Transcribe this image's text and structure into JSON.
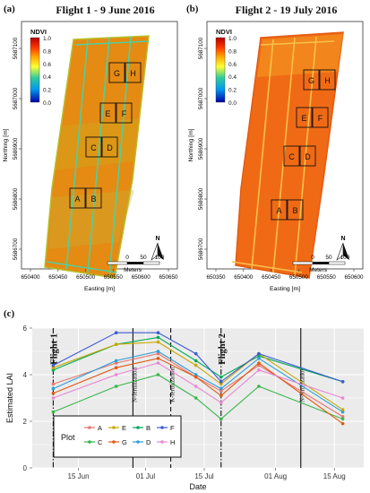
{
  "panels": {
    "a": {
      "letter": "(a)",
      "title": "Flight 1 - 9 June 2016"
    },
    "b": {
      "letter": "(b)",
      "title": "Flight 2 - 19 July 2016"
    },
    "c": {
      "letter": "(c)"
    }
  },
  "maps": {
    "ndvi_title": "NDVI",
    "ndvi_ticks": [
      "1.0",
      "0.8",
      "0.6",
      "0.4",
      "0.2",
      "0.0"
    ],
    "plots": [
      [
        "G",
        "H"
      ],
      [
        "E",
        "F"
      ],
      [
        "C",
        "D"
      ],
      [
        "A",
        "B"
      ]
    ],
    "north_label": "N",
    "scale_ticks": [
      "0",
      "50",
      "100"
    ],
    "scale_unit": "Meters",
    "a": {
      "x_ticks": [
        "650400",
        "650450",
        "650500",
        "650550",
        "650600",
        "650650"
      ],
      "y_ticks": [
        "5687100",
        "5687000",
        "5686900",
        "5686800",
        "5686700"
      ],
      "x_label": "Easting [m]",
      "y_label": "Northing [m]"
    },
    "b": {
      "x_ticks": [
        "650350",
        "650400",
        "650450",
        "650500",
        "650550",
        "650600"
      ],
      "y_ticks": [
        "5687100",
        "5687000",
        "5686900",
        "5686800",
        "5686700"
      ],
      "x_label": "Easting [m]",
      "y_label": "Northing [m]"
    }
  },
  "chart_data": {
    "type": "line",
    "xlabel": "Date",
    "ylabel": "Estimated LAI",
    "x": [
      "2016-06-09",
      "2016-06-24",
      "2016-07-04",
      "2016-07-13",
      "2016-07-19",
      "2016-07-28",
      "2016-08-17"
    ],
    "x_tick_labels": [
      "15 Jun",
      "01 Jul",
      "15 Jul",
      "01 Aug",
      "15 Aug"
    ],
    "x_tick_dates": [
      "2016-06-15",
      "2016-07-01",
      "2016-07-15",
      "2016-08-01",
      "2016-08-15"
    ],
    "ylim": [
      0,
      6
    ],
    "y_ticks": [
      0,
      2,
      4,
      6
    ],
    "grid": true,
    "legend_title": "Plot",
    "legend_position": "bottom-left",
    "series": [
      {
        "name": "A",
        "color": "#e8766d",
        "values": [
          3.6,
          4.5,
          4.9,
          3.9,
          3.3,
          4.4,
          2.2
        ]
      },
      {
        "name": "B",
        "color": "#00aa55",
        "values": [
          4.2,
          5.3,
          5.6,
          4.6,
          3.9,
          4.8,
          3.7
        ]
      },
      {
        "name": "C",
        "color": "#39b54a",
        "values": [
          2.4,
          3.5,
          4.0,
          3.0,
          2.1,
          3.5,
          2.1
        ]
      },
      {
        "name": "D",
        "color": "#2e9fd8",
        "values": [
          3.4,
          4.6,
          5.0,
          4.0,
          3.4,
          4.7,
          2.4
        ]
      },
      {
        "name": "E",
        "color": "#c9a800",
        "values": [
          4.3,
          5.3,
          5.4,
          4.4,
          3.6,
          4.9,
          2.5
        ]
      },
      {
        "name": "F",
        "color": "#3d5bd6",
        "values": [
          4.4,
          5.8,
          5.8,
          4.9,
          3.7,
          4.9,
          3.7
        ]
      },
      {
        "name": "G",
        "color": "#e05a14",
        "values": [
          3.2,
          4.3,
          4.7,
          3.9,
          3.1,
          4.5,
          1.9
        ]
      },
      {
        "name": "H",
        "color": "#e888d4",
        "values": [
          3.0,
          4.0,
          4.5,
          3.5,
          2.8,
          4.2,
          3.0
        ]
      }
    ],
    "vlines": [
      {
        "date": "2016-06-09",
        "label": "Flight 1",
        "style": "dashdot",
        "text_style": "bold"
      },
      {
        "date": "2016-06-28",
        "label": "N-fertilization",
        "style": "solid",
        "text_style": "normal"
      },
      {
        "date": "2016-07-07",
        "label": "K-fertilization",
        "style": "dashed",
        "text_style": "normal"
      },
      {
        "date": "2016-07-19",
        "label": "Flight 2",
        "style": "dashdot",
        "text_style": "bold"
      },
      {
        "date": "2016-08-07",
        "label": "N-fertilization",
        "style": "solid",
        "text_style": "normal"
      }
    ]
  }
}
